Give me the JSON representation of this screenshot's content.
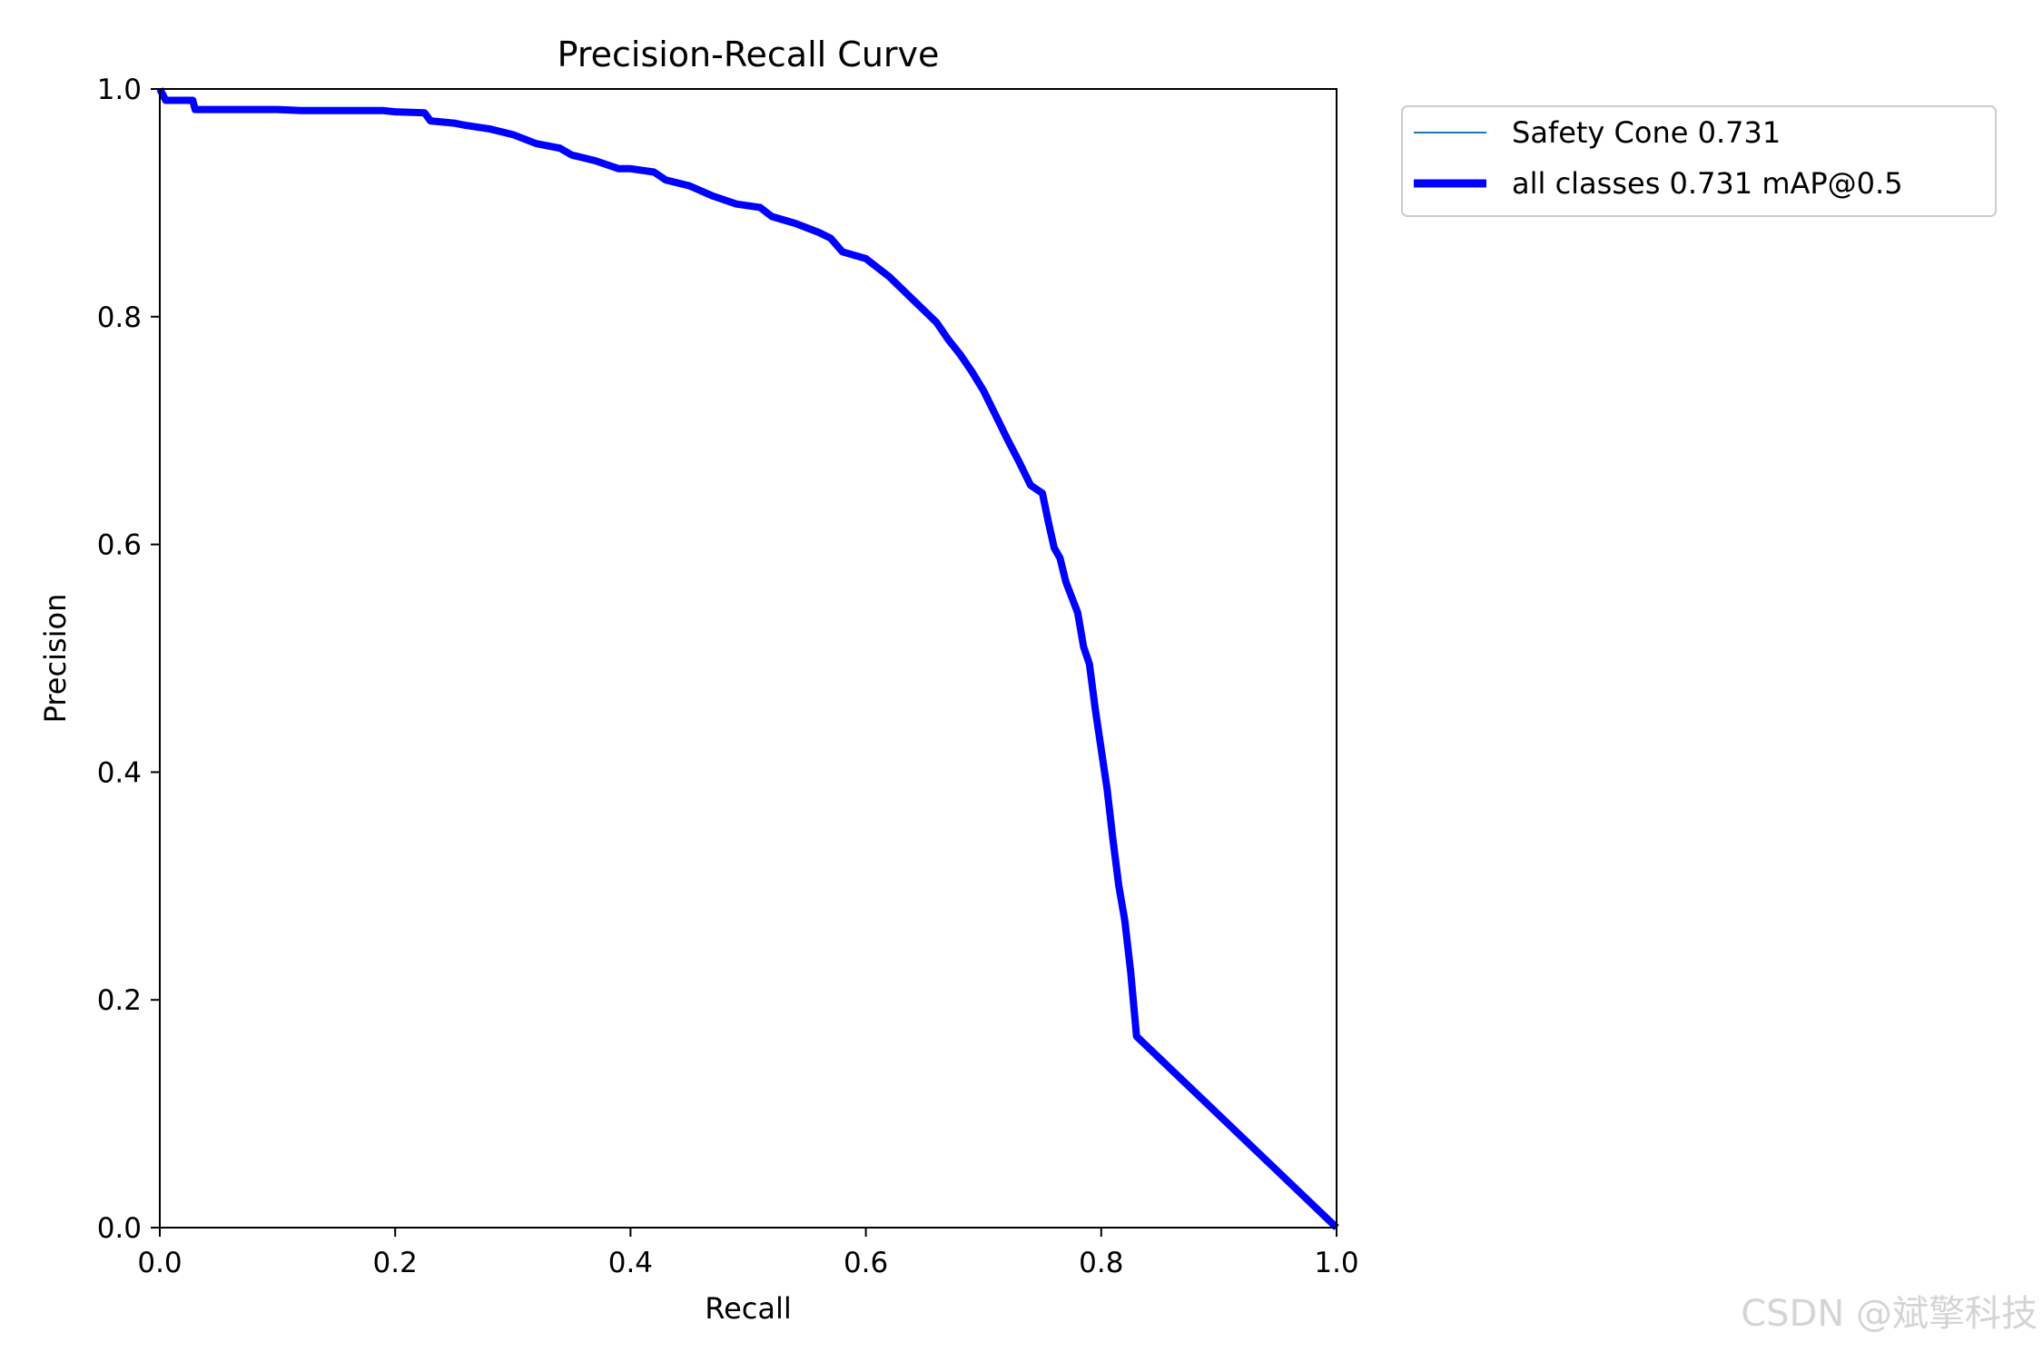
{
  "watermark": "CSDN @斌擎科技",
  "colors": {
    "all_classes": "#0000ff",
    "class_line": "#1f77b4",
    "axes": "#000000",
    "watermark": "#d4d4d4"
  },
  "chart_data": {
    "type": "line",
    "title": "Precision-Recall Curve",
    "xlabel": "Recall",
    "ylabel": "Precision",
    "xlim": [
      0,
      1
    ],
    "ylim": [
      0,
      1
    ],
    "xticks": [
      "0.0",
      "0.2",
      "0.4",
      "0.6",
      "0.8",
      "1.0"
    ],
    "yticks": [
      "0.0",
      "0.2",
      "0.4",
      "0.6",
      "0.8",
      "1.0"
    ],
    "grid": false,
    "legend_position": "outside top-right",
    "legend": [
      "Safety Cone 0.731",
      "all classes 0.731 mAP@0.5"
    ],
    "series": [
      {
        "name": "Safety Cone 0.731",
        "x": [
          0.0,
          0.005,
          0.01,
          0.028,
          0.03,
          0.04,
          0.1,
          0.12,
          0.19,
          0.2,
          0.225,
          0.23,
          0.25,
          0.26,
          0.28,
          0.3,
          0.32,
          0.34,
          0.35,
          0.37,
          0.39,
          0.4,
          0.42,
          0.43,
          0.45,
          0.47,
          0.49,
          0.51,
          0.52,
          0.54,
          0.56,
          0.57,
          0.58,
          0.6,
          0.61,
          0.62,
          0.63,
          0.64,
          0.65,
          0.66,
          0.67,
          0.68,
          0.69,
          0.7,
          0.71,
          0.72,
          0.73,
          0.74,
          0.75,
          0.755,
          0.76,
          0.765,
          0.77,
          0.78,
          0.785,
          0.79,
          0.795,
          0.8,
          0.805,
          0.81,
          0.815,
          0.82,
          0.825,
          0.83,
          1.0
        ],
        "y": [
          1.0,
          0.99,
          0.99,
          0.99,
          0.982,
          0.982,
          0.982,
          0.981,
          0.981,
          0.98,
          0.979,
          0.972,
          0.97,
          0.968,
          0.965,
          0.96,
          0.952,
          0.948,
          0.942,
          0.937,
          0.93,
          0.93,
          0.927,
          0.92,
          0.915,
          0.906,
          0.899,
          0.896,
          0.888,
          0.882,
          0.874,
          0.869,
          0.857,
          0.851,
          0.843,
          0.835,
          0.825,
          0.815,
          0.805,
          0.795,
          0.78,
          0.767,
          0.752,
          0.735,
          0.714,
          0.693,
          0.673,
          0.652,
          0.645,
          0.62,
          0.597,
          0.588,
          0.567,
          0.54,
          0.51,
          0.495,
          0.455,
          0.42,
          0.385,
          0.34,
          0.3,
          0.27,
          0.225,
          0.168,
          0.0
        ]
      },
      {
        "name": "all classes 0.731 mAP@0.5",
        "x": [
          0.0,
          0.005,
          0.01,
          0.028,
          0.03,
          0.04,
          0.1,
          0.12,
          0.19,
          0.2,
          0.225,
          0.23,
          0.25,
          0.26,
          0.28,
          0.3,
          0.32,
          0.34,
          0.35,
          0.37,
          0.39,
          0.4,
          0.42,
          0.43,
          0.45,
          0.47,
          0.49,
          0.51,
          0.52,
          0.54,
          0.56,
          0.57,
          0.58,
          0.6,
          0.61,
          0.62,
          0.63,
          0.64,
          0.65,
          0.66,
          0.67,
          0.68,
          0.69,
          0.7,
          0.71,
          0.72,
          0.73,
          0.74,
          0.75,
          0.755,
          0.76,
          0.765,
          0.77,
          0.78,
          0.785,
          0.79,
          0.795,
          0.8,
          0.805,
          0.81,
          0.815,
          0.82,
          0.825,
          0.83,
          1.0
        ],
        "y": [
          1.0,
          0.99,
          0.99,
          0.99,
          0.982,
          0.982,
          0.982,
          0.981,
          0.981,
          0.98,
          0.979,
          0.972,
          0.97,
          0.968,
          0.965,
          0.96,
          0.952,
          0.948,
          0.942,
          0.937,
          0.93,
          0.93,
          0.927,
          0.92,
          0.915,
          0.906,
          0.899,
          0.896,
          0.888,
          0.882,
          0.874,
          0.869,
          0.857,
          0.851,
          0.843,
          0.835,
          0.825,
          0.815,
          0.805,
          0.795,
          0.78,
          0.767,
          0.752,
          0.735,
          0.714,
          0.693,
          0.673,
          0.652,
          0.645,
          0.62,
          0.597,
          0.588,
          0.567,
          0.54,
          0.51,
          0.495,
          0.455,
          0.42,
          0.385,
          0.34,
          0.3,
          0.27,
          0.225,
          0.168,
          0.0
        ]
      }
    ]
  }
}
